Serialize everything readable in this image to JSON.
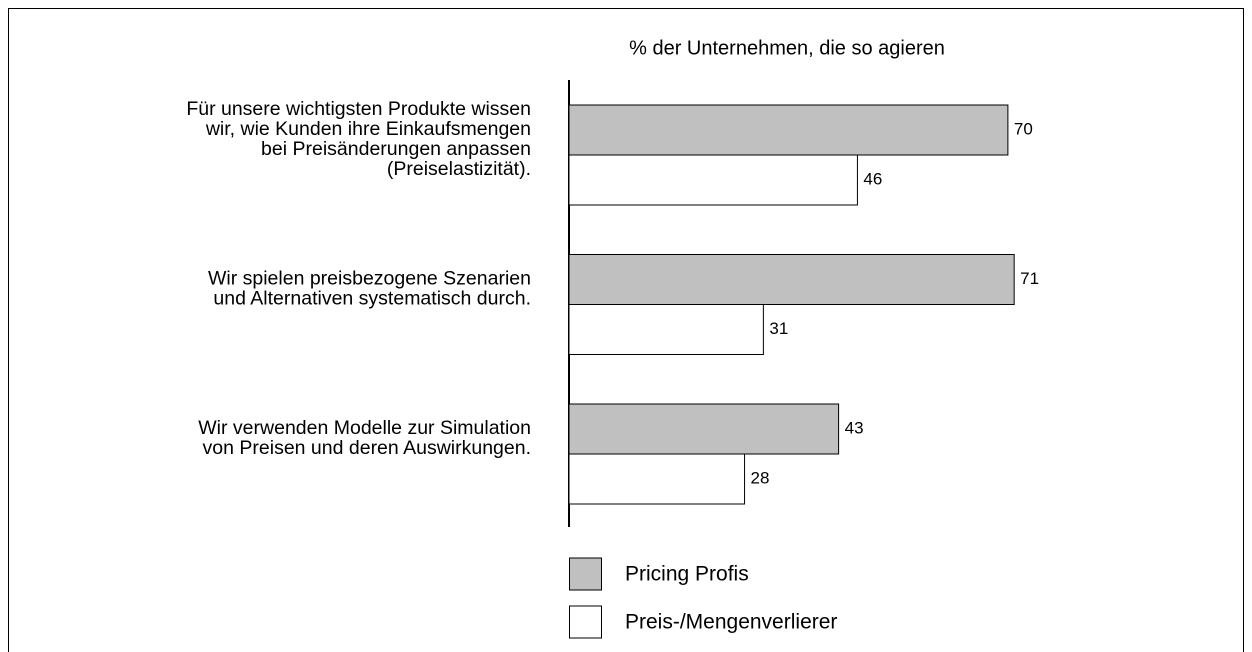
{
  "chart_data": {
    "type": "hbar",
    "title": "% der Unternehmen, die so agieren",
    "categories": [
      [
        "Für unsere wichtigsten Produkte wissen",
        "wir, wie Kunden ihre Einkaufsmengen",
        "bei Preisänderungen anpassen",
        "(Preiselastizität)."
      ],
      [
        "Wir spielen preisbezogene Szenarien",
        "und Alternativen systematisch durch."
      ],
      [
        "Wir verwenden Modelle zur Simulation",
        "von Preisen und deren Auswirkungen."
      ]
    ],
    "series": [
      {
        "name": "Pricing Profis",
        "color": "#c0c0c0",
        "values": [
          70,
          71,
          43
        ]
      },
      {
        "name": "Preis-/Mengenverlierer",
        "color": "#ffffff",
        "values": [
          46,
          31,
          28
        ]
      }
    ],
    "xlim": [
      0,
      100
    ]
  }
}
